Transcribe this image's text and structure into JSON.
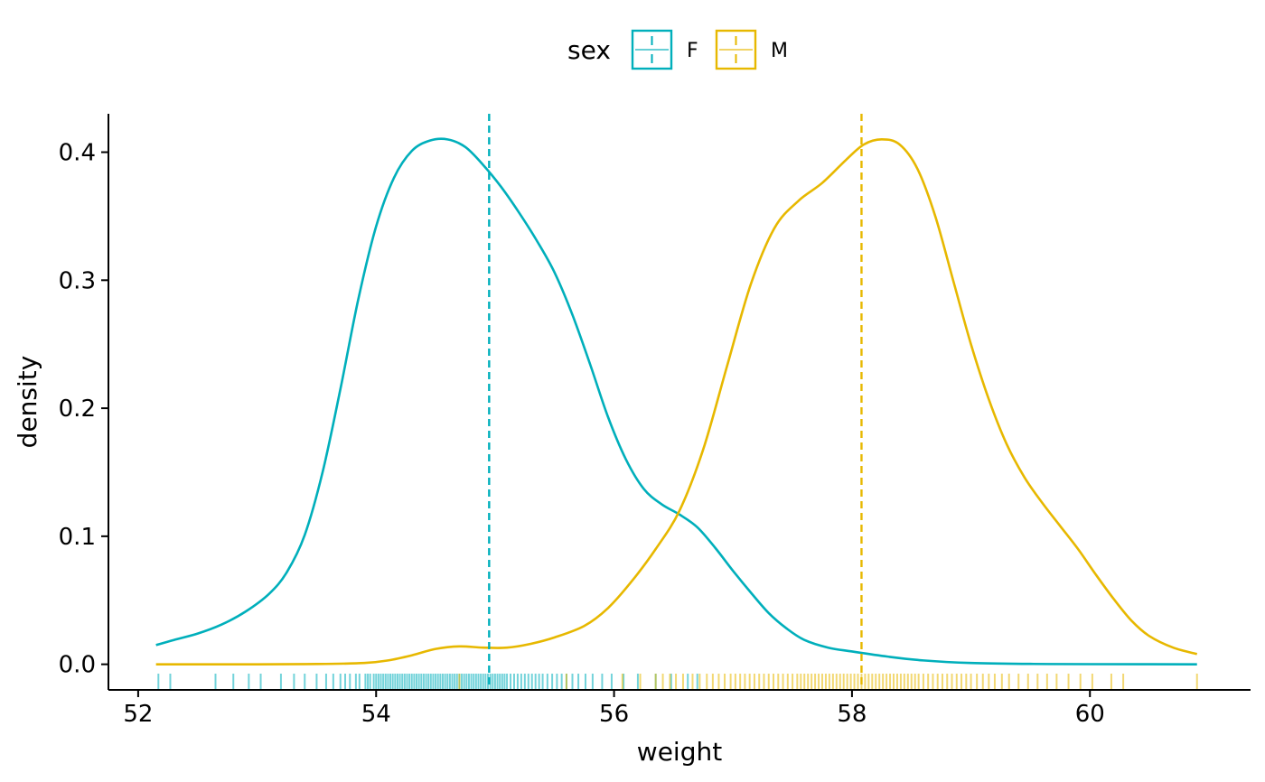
{
  "chart_data": {
    "type": "density",
    "title": "",
    "xlabel": "weight",
    "ylabel": "density",
    "xlim": [
      51.75,
      61.35
    ],
    "ylim": [
      -0.02,
      0.43
    ],
    "x_ticks": [
      52,
      54,
      56,
      58,
      60
    ],
    "x_tick_labels": [
      "52",
      "54",
      "56",
      "58",
      "60"
    ],
    "y_ticks": [
      0.0,
      0.1,
      0.2,
      0.3,
      0.4
    ],
    "y_tick_labels": [
      "0.0",
      "0.1",
      "0.2",
      "0.3",
      "0.4"
    ],
    "grid": false,
    "legend": {
      "title": "sex",
      "position": "top",
      "entries": [
        {
          "label": "F",
          "color": "#00AFBB"
        },
        {
          "label": "M",
          "color": "#E7B800"
        }
      ]
    },
    "series": [
      {
        "name": "F",
        "color": "#00AFBB",
        "mean": 54.95,
        "density": [
          [
            52.15,
            0.015
          ],
          [
            52.3,
            0.019
          ],
          [
            52.5,
            0.024
          ],
          [
            52.7,
            0.031
          ],
          [
            52.9,
            0.041
          ],
          [
            53.1,
            0.055
          ],
          [
            53.25,
            0.072
          ],
          [
            53.4,
            0.101
          ],
          [
            53.55,
            0.15
          ],
          [
            53.7,
            0.215
          ],
          [
            53.85,
            0.285
          ],
          [
            54.0,
            0.342
          ],
          [
            54.15,
            0.38
          ],
          [
            54.3,
            0.401
          ],
          [
            54.45,
            0.409
          ],
          [
            54.6,
            0.41
          ],
          [
            54.75,
            0.404
          ],
          [
            54.9,
            0.39
          ],
          [
            55.05,
            0.373
          ],
          [
            55.2,
            0.353
          ],
          [
            55.35,
            0.331
          ],
          [
            55.5,
            0.306
          ],
          [
            55.65,
            0.273
          ],
          [
            55.8,
            0.234
          ],
          [
            55.95,
            0.193
          ],
          [
            56.1,
            0.16
          ],
          [
            56.25,
            0.137
          ],
          [
            56.4,
            0.125
          ],
          [
            56.55,
            0.117
          ],
          [
            56.7,
            0.107
          ],
          [
            56.85,
            0.091
          ],
          [
            57.0,
            0.073
          ],
          [
            57.15,
            0.056
          ],
          [
            57.3,
            0.04
          ],
          [
            57.45,
            0.028
          ],
          [
            57.6,
            0.019
          ],
          [
            57.8,
            0.013
          ],
          [
            58.0,
            0.01
          ],
          [
            58.3,
            0.006
          ],
          [
            58.6,
            0.003
          ],
          [
            59.0,
            0.001
          ],
          [
            59.5,
            0.0003
          ],
          [
            60.0,
            0.0001
          ],
          [
            60.9,
            0.0
          ]
        ]
      },
      {
        "name": "M",
        "color": "#E7B800",
        "mean": 58.08,
        "density": [
          [
            52.15,
            0.0
          ],
          [
            53.0,
            0.0
          ],
          [
            53.5,
            0.0002
          ],
          [
            53.9,
            0.001
          ],
          [
            54.1,
            0.003
          ],
          [
            54.3,
            0.007
          ],
          [
            54.5,
            0.012
          ],
          [
            54.7,
            0.014
          ],
          [
            54.9,
            0.013
          ],
          [
            55.1,
            0.013
          ],
          [
            55.3,
            0.016
          ],
          [
            55.5,
            0.021
          ],
          [
            55.75,
            0.03
          ],
          [
            55.95,
            0.044
          ],
          [
            56.15,
            0.065
          ],
          [
            56.35,
            0.09
          ],
          [
            56.55,
            0.12
          ],
          [
            56.75,
            0.168
          ],
          [
            56.95,
            0.233
          ],
          [
            57.15,
            0.297
          ],
          [
            57.35,
            0.341
          ],
          [
            57.55,
            0.362
          ],
          [
            57.75,
            0.376
          ],
          [
            57.95,
            0.394
          ],
          [
            58.1,
            0.406
          ],
          [
            58.25,
            0.41
          ],
          [
            58.4,
            0.406
          ],
          [
            58.55,
            0.387
          ],
          [
            58.7,
            0.35
          ],
          [
            58.85,
            0.3
          ],
          [
            59.0,
            0.25
          ],
          [
            59.15,
            0.207
          ],
          [
            59.3,
            0.172
          ],
          [
            59.45,
            0.146
          ],
          [
            59.6,
            0.126
          ],
          [
            59.75,
            0.108
          ],
          [
            59.9,
            0.09
          ],
          [
            60.05,
            0.07
          ],
          [
            60.2,
            0.051
          ],
          [
            60.35,
            0.034
          ],
          [
            60.5,
            0.022
          ],
          [
            60.7,
            0.013
          ],
          [
            60.9,
            0.008
          ]
        ]
      }
    ],
    "rug": {
      "F": [
        52.17,
        52.27,
        52.65,
        52.8,
        52.93,
        53.03,
        53.2,
        53.31,
        53.4,
        53.5,
        53.58,
        53.64,
        53.7,
        53.74,
        53.78,
        53.83,
        53.86,
        53.91,
        53.93,
        53.95,
        53.98,
        54.0,
        54.02,
        54.04,
        54.06,
        54.08,
        54.1,
        54.12,
        54.14,
        54.16,
        54.18,
        54.2,
        54.22,
        54.24,
        54.26,
        54.28,
        54.3,
        54.32,
        54.34,
        54.36,
        54.38,
        54.4,
        54.42,
        54.44,
        54.46,
        54.48,
        54.5,
        54.52,
        54.54,
        54.56,
        54.58,
        54.6,
        54.62,
        54.64,
        54.66,
        54.68,
        54.7,
        54.72,
        54.74,
        54.76,
        54.78,
        54.8,
        54.82,
        54.84,
        54.86,
        54.88,
        54.9,
        54.92,
        54.94,
        54.96,
        54.98,
        55.0,
        55.02,
        55.04,
        55.06,
        55.08,
        55.1,
        55.13,
        55.16,
        55.19,
        55.22,
        55.25,
        55.28,
        55.31,
        55.34,
        55.37,
        55.4,
        55.44,
        55.48,
        55.52,
        55.56,
        55.6,
        55.65,
        55.7,
        55.76,
        55.82,
        55.9,
        55.98,
        56.08,
        56.2,
        56.35,
        56.48,
        56.62,
        56.7
      ],
      "M": [
        54.7,
        55.6,
        56.07,
        56.22,
        56.35,
        56.41,
        56.47,
        56.52,
        56.58,
        56.66,
        56.72,
        56.78,
        56.83,
        56.88,
        56.93,
        56.98,
        57.02,
        57.06,
        57.1,
        57.14,
        57.18,
        57.22,
        57.26,
        57.3,
        57.34,
        57.38,
        57.42,
        57.46,
        57.5,
        57.54,
        57.57,
        57.6,
        57.63,
        57.66,
        57.69,
        57.72,
        57.75,
        57.78,
        57.81,
        57.84,
        57.87,
        57.9,
        57.93,
        57.96,
        57.99,
        58.02,
        58.05,
        58.08,
        58.11,
        58.14,
        58.17,
        58.2,
        58.23,
        58.26,
        58.29,
        58.32,
        58.35,
        58.38,
        58.41,
        58.44,
        58.47,
        58.5,
        58.53,
        58.56,
        58.6,
        58.64,
        58.68,
        58.72,
        58.76,
        58.8,
        58.84,
        58.88,
        58.92,
        58.96,
        59.0,
        59.05,
        59.1,
        59.15,
        59.2,
        59.26,
        59.32,
        59.4,
        59.48,
        59.56,
        59.64,
        59.72,
        59.82,
        59.92,
        60.02,
        60.18,
        60.28,
        60.9
      ]
    }
  }
}
